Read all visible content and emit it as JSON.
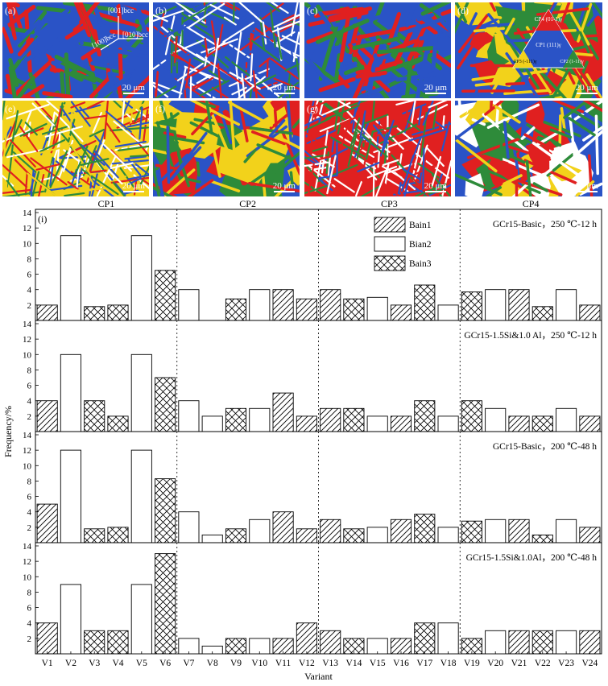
{
  "figure": {
    "map_panels": [
      {
        "label": "(a)",
        "scale": "20 μm",
        "palette": [
          "#2a53c6",
          "#e02020",
          "#2e8b3a"
        ],
        "density": "coarse-laths"
      },
      {
        "label": "(b)",
        "scale": "20 μm",
        "palette": [
          "#2a53c6",
          "#e02020",
          "#2e8b3a",
          "#ffffff"
        ],
        "density": "fine-needles"
      },
      {
        "label": "(c)",
        "scale": "20 μm",
        "palette": [
          "#2a53c6",
          "#e02020",
          "#2e8b3a"
        ],
        "density": "coarse-laths"
      },
      {
        "label": "(d)",
        "scale": "20 μm",
        "palette": [
          "#2a53c6",
          "#f2d21b",
          "#e02020",
          "#2e8b3a"
        ],
        "density": "blocky"
      },
      {
        "label": "(e)",
        "scale": "20 μm",
        "palette": [
          "#f2d21b",
          "#2a53c6",
          "#2e8b3a",
          "#e02020",
          "#ffffff"
        ],
        "density": "fine-needles"
      },
      {
        "label": "(f)",
        "scale": "20 μm",
        "palette": [
          "#2a53c6",
          "#f2d21b",
          "#2e8b3a",
          "#e02020"
        ],
        "density": "blocky"
      },
      {
        "label": "(g)",
        "scale": "20 μm",
        "palette": [
          "#e02020",
          "#2a53c6",
          "#2e8b3a",
          "#ffffff"
        ],
        "density": "fine-needles"
      },
      {
        "label": "(h)",
        "scale": "20 μm",
        "palette": [
          "#2a53c6",
          "#f2d21b",
          "#e02020",
          "#2e8b3a",
          "#ffffff"
        ],
        "density": "mixed"
      }
    ],
    "panel_a_axes": [
      "[001]bcc",
      "[100]bcc",
      "[010]bcc"
    ],
    "legend_triangle": {
      "top": "CP4 (01-1)γ",
      "center": "CP1 (111)γ",
      "left": "CP3 (-111)γ",
      "right": "CP2 (1-11)γ"
    }
  },
  "chart_data": {
    "type": "bar",
    "panel_label": "(i)",
    "categories": [
      "V1",
      "V2",
      "V3",
      "V4",
      "V5",
      "V6",
      "V7",
      "V8",
      "V9",
      "V10",
      "V11",
      "V12",
      "V13",
      "V14",
      "V15",
      "V16",
      "V17",
      "V18",
      "V19",
      "V20",
      "V21",
      "V22",
      "V23",
      "V24"
    ],
    "patterns": [
      "Bain1",
      "Bian2",
      "Bain3",
      "Bain3",
      "Bian2",
      "Bain3",
      "Bian2",
      "Bian2",
      "Bain3",
      "Bian2",
      "Bain1",
      "Bain1",
      "Bain1",
      "Bain3",
      "Bian2",
      "Bain1",
      "Bain3",
      "Bian2",
      "Bain3",
      "Bian2",
      "Bain1",
      "Bain3",
      "Bian2",
      "Bain1"
    ],
    "series": [
      {
        "name": "GCr15-Basic，250 ℃-12 h",
        "values": [
          2,
          11,
          1.8,
          2,
          11,
          6.5,
          4,
          0,
          2.8,
          4,
          4,
          2.8,
          4,
          2.8,
          3,
          2,
          4.6,
          2,
          3.7,
          4,
          4,
          1.8,
          4,
          2
        ]
      },
      {
        "name": "GCr15-1.5Si&1.0 Al，250 ℃-12 h",
        "values": [
          4,
          10,
          4,
          2,
          10,
          7,
          4,
          2,
          3,
          3,
          5,
          2,
          3,
          3,
          2,
          2,
          4,
          2,
          4,
          3,
          2,
          2,
          3,
          2
        ]
      },
      {
        "name": "GCr15-Basic，200 ℃-48 h",
        "values": [
          5,
          12,
          1.8,
          2,
          12,
          8.3,
          4,
          1,
          1.8,
          3,
          4,
          1.8,
          3,
          1.8,
          2,
          3,
          3.7,
          2,
          2.8,
          3,
          3,
          1,
          3,
          2
        ]
      },
      {
        "name": "GCr15-1.5Si&1.0Al，200 ℃-48 h",
        "values": [
          4,
          9,
          3,
          3,
          9,
          13,
          2,
          1,
          2,
          2,
          2,
          4,
          3,
          2,
          2,
          2,
          4,
          4,
          2,
          3,
          3,
          3,
          3,
          3
        ]
      }
    ],
    "groups": [
      "CP1",
      "CP2",
      "CP3",
      "CP4"
    ],
    "legend": [
      "Bain1",
      "Bian2",
      "Bain3"
    ],
    "yticks": [
      "2",
      "4",
      "6",
      "8",
      "10",
      "12",
      "14"
    ],
    "ylim": [
      0,
      14
    ],
    "xlabel": "Variant",
    "ylabel": "Frequency/%"
  }
}
